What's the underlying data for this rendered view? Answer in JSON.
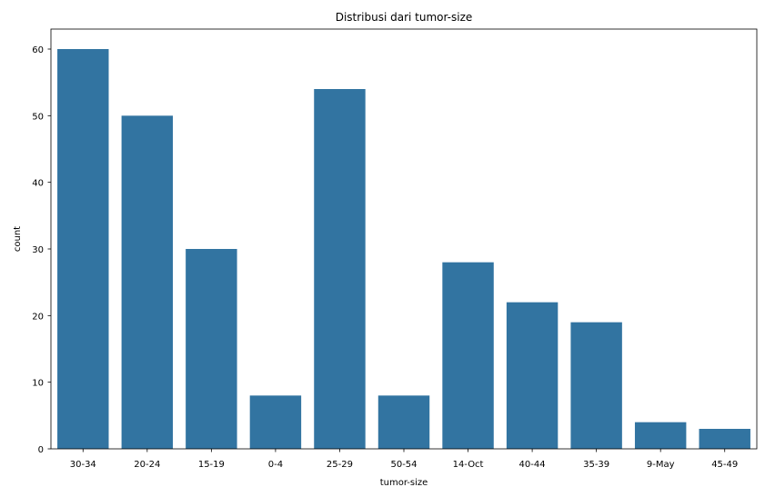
{
  "chart_data": {
    "type": "bar",
    "title": "Distribusi dari tumor-size",
    "xlabel": "tumor-size",
    "ylabel": "count",
    "categories": [
      "30-34",
      "20-24",
      "15-19",
      "0-4",
      "25-29",
      "50-54",
      "14-Oct",
      "40-44",
      "35-39",
      "9-May",
      "45-49"
    ],
    "values": [
      60,
      50,
      30,
      8,
      54,
      8,
      28,
      22,
      19,
      4,
      3
    ],
    "ylim": [
      0,
      63
    ],
    "yticks": [
      0,
      10,
      20,
      30,
      40,
      50,
      60
    ],
    "grid": false,
    "bar_color": "#3274a1"
  }
}
